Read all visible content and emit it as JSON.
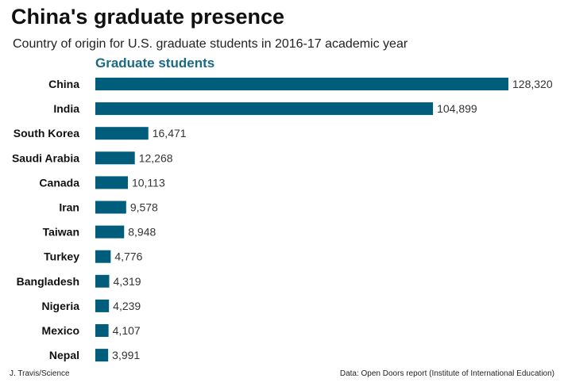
{
  "chart_data": {
    "type": "bar",
    "orientation": "horizontal",
    "title": "China's graduate presence",
    "subtitle": "Country of origin for U.S. graduate students in 2016-17 academic year",
    "series": [
      {
        "name": "Graduate students",
        "values": [
          128320,
          104899,
          16471,
          12268,
          10113,
          9578,
          8948,
          4776,
          4319,
          4239,
          4107,
          3991
        ]
      }
    ],
    "categories": [
      "China",
      "India",
      "South Korea",
      "Saudi Arabia",
      "Canada",
      "Iran",
      "Taiwan",
      "Turkey",
      "Bangladesh",
      "Nigeria",
      "Mexico",
      "Nepal"
    ],
    "value_labels": [
      "128,320",
      "104,899",
      "16,471",
      "12,268",
      "10,113",
      "9,578",
      "8,948",
      "4,776",
      "4,319",
      "4,239",
      "4,107",
      "3,991"
    ],
    "bar_color": "#005e7c",
    "series_label_color": "#1a6a86",
    "xlim": [
      0,
      128320
    ],
    "grid": false,
    "x_axis_shown": false
  },
  "footer": {
    "credit": "J. Travis/Science",
    "source": "Data: Open Doors report (Institute of International Education)"
  }
}
